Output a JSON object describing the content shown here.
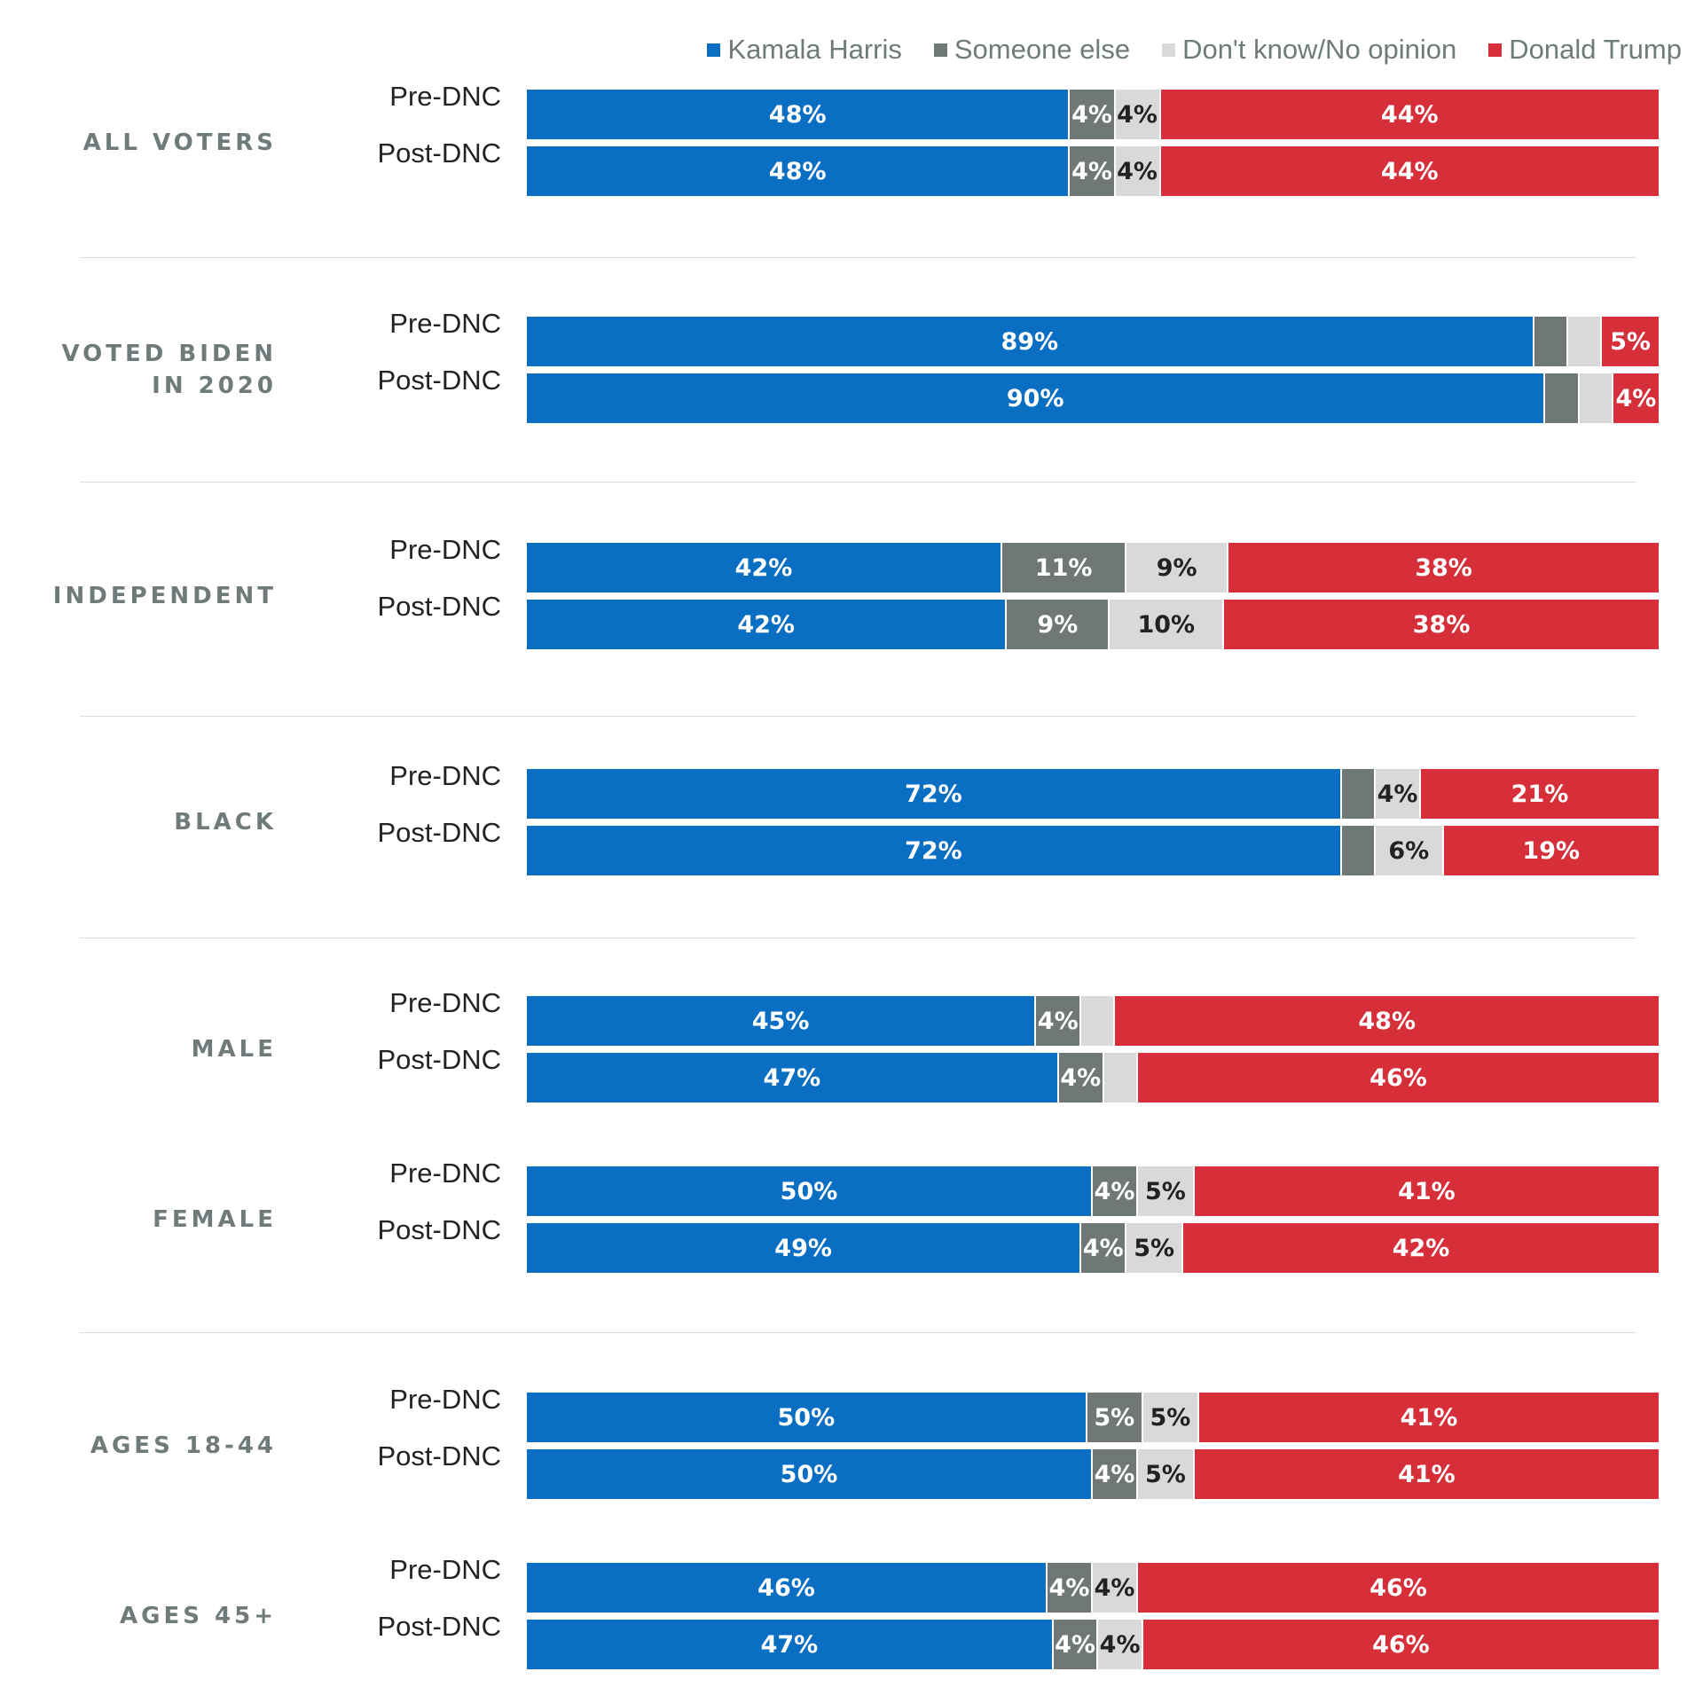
{
  "colors": {
    "harris": "#0a6fc2",
    "else": "#6f7777",
    "dk": "#d8dada",
    "trump": "#d62f3a"
  },
  "chart_data": {
    "type": "bar",
    "orientation": "horizontal",
    "stacked": true,
    "xlim": [
      0,
      100
    ],
    "legend": [
      {
        "key": "harris",
        "label": "Kamala Harris"
      },
      {
        "key": "else",
        "label": "Someone else"
      },
      {
        "key": "dk",
        "label": "Don't know/No opinion"
      },
      {
        "key": "trump",
        "label": "Donald Trump"
      }
    ],
    "legend_position": "top-right",
    "groups": [
      {
        "label": "ALL VOTERS",
        "rows": [
          {
            "label": "Pre-DNC",
            "values": [
              48,
              4,
              4,
              44
            ],
            "labels": [
              "48%",
              "4%",
              "4%",
              "44%"
            ]
          },
          {
            "label": "Post-DNC",
            "values": [
              48,
              4,
              4,
              44
            ],
            "labels": [
              "48%",
              "4%",
              "4%",
              "44%"
            ]
          }
        ]
      },
      {
        "label": "VOTED BIDEN IN 2020",
        "rows": [
          {
            "label": "Pre-DNC",
            "values": [
              89,
              3,
              3,
              5
            ],
            "labels": [
              "89%",
              "",
              "",
              "5%"
            ]
          },
          {
            "label": "Post-DNC",
            "values": [
              90,
              3,
              3,
              4
            ],
            "labels": [
              "90%",
              "",
              "",
              "4%"
            ]
          }
        ]
      },
      {
        "label": "INDEPENDENT",
        "rows": [
          {
            "label": "Pre-DNC",
            "values": [
              42,
              11,
              9,
              38
            ],
            "labels": [
              "42%",
              "11%",
              "9%",
              "38%"
            ]
          },
          {
            "label": "Post-DNC",
            "values": [
              42,
              9,
              10,
              38
            ],
            "labels": [
              "42%",
              "9%",
              "10%",
              "38%"
            ]
          }
        ]
      },
      {
        "label": "BLACK",
        "rows": [
          {
            "label": "Pre-DNC",
            "values": [
              72,
              3,
              4,
              21
            ],
            "labels": [
              "72%",
              "",
              "4%",
              "21%"
            ]
          },
          {
            "label": "Post-DNC",
            "values": [
              72,
              3,
              6,
              19
            ],
            "labels": [
              "72%",
              "",
              "6%",
              "19%"
            ]
          }
        ]
      },
      {
        "label": "MALE",
        "rows": [
          {
            "label": "Pre-DNC",
            "values": [
              45,
              4,
              3,
              48
            ],
            "labels": [
              "45%",
              "4%",
              "",
              "48%"
            ]
          },
          {
            "label": "Post-DNC",
            "values": [
              47,
              4,
              3,
              46
            ],
            "labels": [
              "47%",
              "4%",
              "",
              "46%"
            ]
          }
        ]
      },
      {
        "label": "FEMALE",
        "rows": [
          {
            "label": "Pre-DNC",
            "values": [
              50,
              4,
              5,
              41
            ],
            "labels": [
              "50%",
              "4%",
              "5%",
              "41%"
            ]
          },
          {
            "label": "Post-DNC",
            "values": [
              49,
              4,
              5,
              42
            ],
            "labels": [
              "49%",
              "4%",
              "5%",
              "42%"
            ]
          }
        ]
      },
      {
        "label": "AGES 18-44",
        "rows": [
          {
            "label": "Pre-DNC",
            "values": [
              50,
              5,
              5,
              41
            ],
            "labels": [
              "50%",
              "5%",
              "5%",
              "41%"
            ]
          },
          {
            "label": "Post-DNC",
            "values": [
              50,
              4,
              5,
              41
            ],
            "labels": [
              "50%",
              "4%",
              "5%",
              "41%"
            ]
          }
        ]
      },
      {
        "label": "AGES 45+",
        "rows": [
          {
            "label": "Pre-DNC",
            "values": [
              46,
              4,
              4,
              46
            ],
            "labels": [
              "46%",
              "4%",
              "4%",
              "46%"
            ]
          },
          {
            "label": "Post-DNC",
            "values": [
              47,
              4,
              4,
              46
            ],
            "labels": [
              "47%",
              "4%",
              "4%",
              "46%"
            ]
          }
        ]
      }
    ]
  }
}
